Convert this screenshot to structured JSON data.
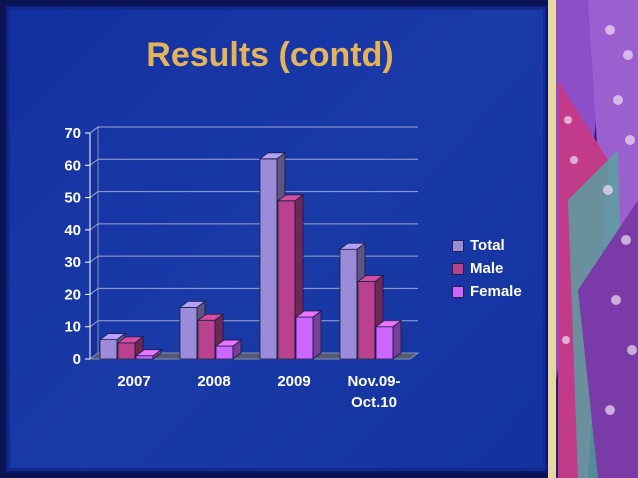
{
  "title": "Results (contd)",
  "colors": {
    "background": "#1a36a6",
    "total": "#9a8cd8",
    "male": "#b8428e",
    "female": "#cc66ff",
    "axis_text": "#ffffff",
    "title": "#e5b35a"
  },
  "chart_data": {
    "type": "bar",
    "categories": [
      "2007",
      "2008",
      "2009",
      "Nov.09-Oct.10"
    ],
    "series": [
      {
        "name": "Total",
        "values": [
          6,
          16,
          62,
          34
        ]
      },
      {
        "name": "Male",
        "values": [
          5,
          12,
          49,
          24
        ]
      },
      {
        "name": "Female",
        "values": [
          1,
          4,
          13,
          10
        ]
      }
    ],
    "yticks": [
      "0",
      "10",
      "20",
      "30",
      "40",
      "50",
      "60",
      "70"
    ],
    "ylim": [
      0,
      70
    ],
    "grid": true,
    "legend_position": "right",
    "three_d": true
  }
}
